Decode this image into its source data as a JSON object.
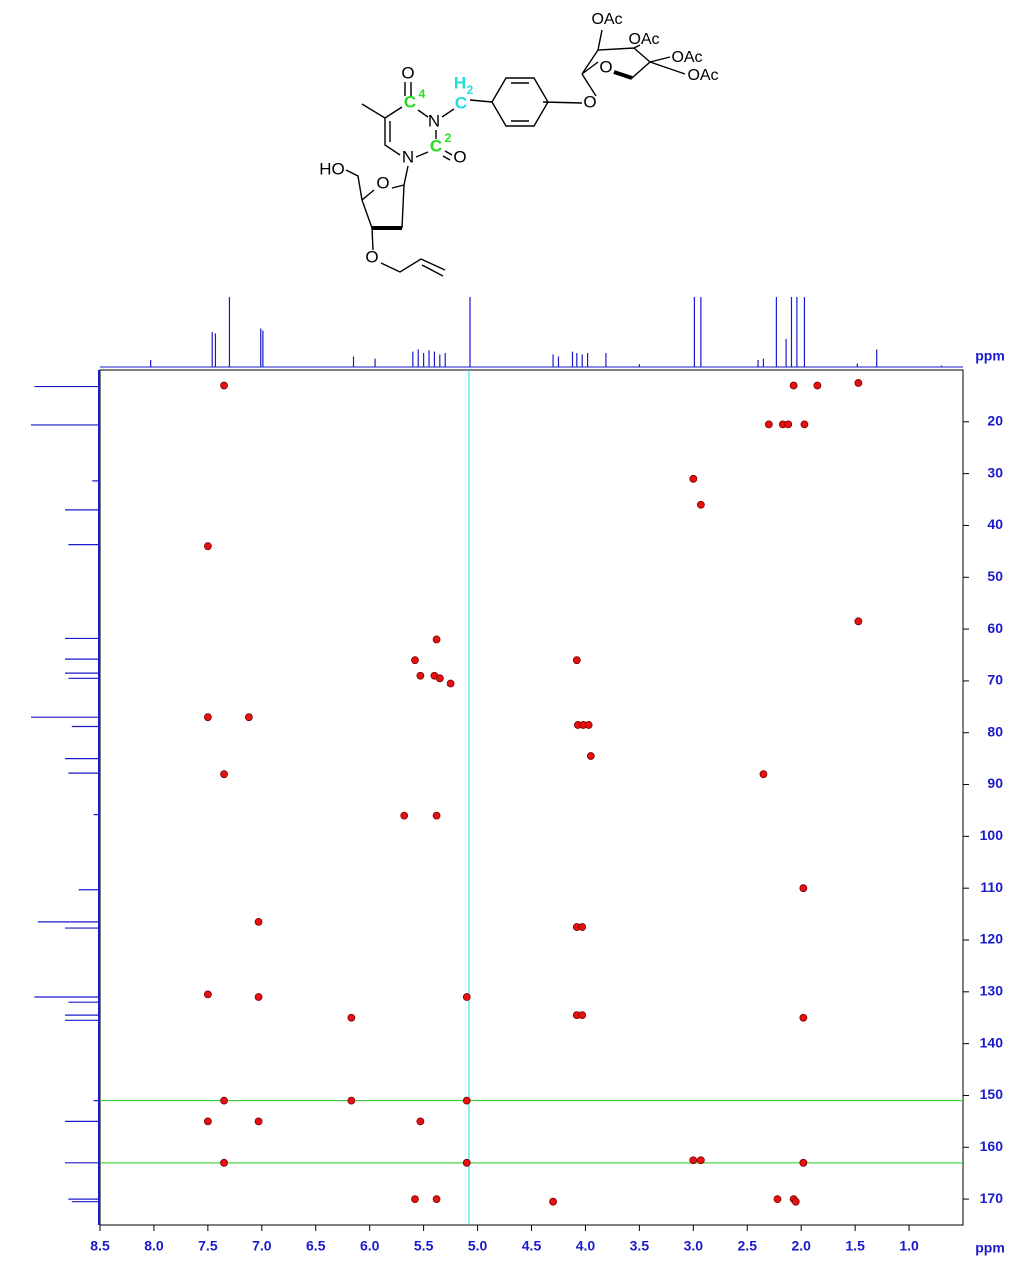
{
  "structure": {
    "labels": [
      "O",
      "C",
      "4",
      "N",
      "H",
      "2",
      "C",
      "C",
      "2",
      "O",
      "N",
      "HO",
      "O",
      "O",
      "O",
      "O",
      "OAc",
      "OAc",
      "OAc",
      "OAc"
    ]
  },
  "chart_data": {
    "type": "scatter",
    "xlabel": "ppm",
    "ylabel": "ppm",
    "xlim": [
      8.5,
      0.5
    ],
    "ylim": [
      10,
      175
    ],
    "xticks": [
      8.5,
      {
        "value": 8,
        "label": "8.0"
      },
      7.5,
      {
        "value": 7,
        "label": "7.0"
      },
      6.5,
      {
        "value": 6,
        "label": "6.0"
      },
      5.5,
      {
        "value": 5,
        "label": "5.0"
      },
      4.5,
      {
        "value": 4,
        "label": "4.0"
      },
      3.5,
      {
        "value": 3,
        "label": "3.0"
      },
      2.5,
      {
        "value": 2,
        "label": "2.0"
      },
      1.5,
      {
        "value": 1,
        "label": "1.0"
      }
    ],
    "yticks": [
      20,
      30,
      40,
      50,
      60,
      70,
      80,
      90,
      100,
      110,
      120,
      130,
      140,
      150,
      160,
      170
    ],
    "color": "#e81010",
    "x": [
      7.35,
      2.07,
      1.85,
      1.47,
      2.3,
      2.17,
      2.12,
      1.97,
      3.0,
      2.93,
      7.5,
      1.47,
      5.38,
      5.58,
      4.08,
      5.53,
      5.4,
      5.35,
      5.25,
      7.5,
      7.12,
      4.07,
      4.02,
      3.97,
      3.95,
      7.35,
      2.35,
      5.68,
      5.38,
      1.98,
      7.03,
      4.08,
      4.03,
      7.5,
      7.03,
      5.1,
      6.17,
      4.08,
      4.03,
      1.98,
      7.35,
      6.17,
      5.1,
      7.5,
      7.03,
      5.53,
      7.35,
      5.1,
      3.0,
      2.93,
      1.98,
      5.58,
      5.38,
      4.3,
      2.22,
      2.07,
      2.05
    ],
    "y": [
      13,
      13,
      13,
      12.5,
      20.5,
      20.5,
      20.5,
      20.5,
      31,
      36,
      44,
      58.5,
      62,
      66,
      66,
      69,
      69,
      69.5,
      70.5,
      77,
      77,
      78.5,
      78.5,
      78.5,
      84.5,
      88,
      88,
      96,
      96,
      110,
      116.5,
      117.5,
      117.5,
      130.5,
      131,
      131,
      135,
      134.5,
      134.5,
      135,
      151,
      151,
      151,
      155,
      155,
      155,
      163,
      163,
      162.5,
      162.5,
      163,
      170,
      170,
      170.5,
      170,
      170,
      170.5
    ],
    "hlines": [
      151,
      163
    ],
    "hline_color": "#22cc22",
    "vlines": [
      5.08
    ],
    "vline_color": "#22dddd",
    "projection_color": "#1a1acc",
    "f2_projection": {
      "x": [
        8.03,
        7.46,
        7.43,
        7.3,
        7.01,
        6.99,
        6.15,
        5.95,
        5.6,
        5.55,
        5.5,
        5.45,
        5.4,
        5.35,
        5.3,
        5.07,
        4.3,
        4.25,
        4.12,
        4.08,
        4.03,
        3.98,
        3.81,
        3.5,
        2.99,
        2.93,
        2.4,
        2.35,
        2.23,
        2.14,
        2.09,
        2.04,
        1.97,
        1.48,
        1.3,
        0.7
      ],
      "values": [
        10,
        50,
        48,
        100,
        55,
        52,
        15,
        12,
        22,
        25,
        20,
        24,
        22,
        18,
        20,
        100,
        18,
        15,
        22,
        20,
        18,
        20,
        20,
        4,
        100,
        100,
        10,
        12,
        100,
        40,
        100,
        100,
        100,
        5,
        25,
        2
      ]
    },
    "f1_projection": {
      "y": [
        13.2,
        20.6,
        31.4,
        37,
        43.7,
        61.8,
        65.8,
        68.5,
        69.5,
        77,
        78.8,
        85,
        87.8,
        95.8,
        110.3,
        116.5,
        117.7,
        131,
        132,
        134.5,
        135.5,
        151,
        155,
        163,
        170,
        170.5
      ],
      "values": [
        95,
        100,
        10,
        50,
        45,
        50,
        50,
        50,
        45,
        100,
        40,
        50,
        45,
        8,
        30,
        90,
        50,
        95,
        45,
        50,
        50,
        8,
        50,
        50,
        45,
        40
      ]
    }
  }
}
